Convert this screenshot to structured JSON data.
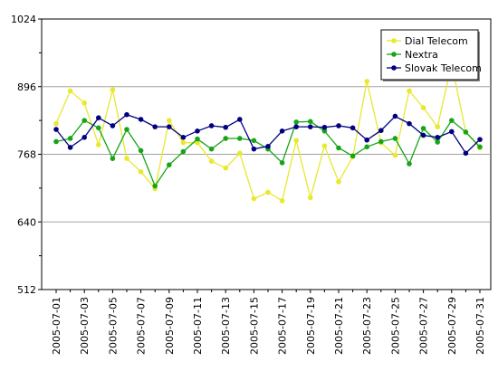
{
  "chart_data": {
    "type": "line",
    "title": "",
    "xlabel": "",
    "ylabel": "",
    "ylim": [
      512,
      1024
    ],
    "y_ticks": [
      512,
      640,
      768,
      896,
      1024
    ],
    "y_tick_labels": [
      "512",
      "640",
      "768",
      "896",
      "1024"
    ],
    "x_tick_every": 2,
    "grid": "horizontal",
    "legend_position": "top-right",
    "x": [
      "2005-07-01",
      "2005-07-02",
      "2005-07-03",
      "2005-07-04",
      "2005-07-05",
      "2005-07-06",
      "2005-07-07",
      "2005-07-08",
      "2005-07-09",
      "2005-07-10",
      "2005-07-11",
      "2005-07-12",
      "2005-07-13",
      "2005-07-14",
      "2005-07-15",
      "2005-07-16",
      "2005-07-17",
      "2005-07-18",
      "2005-07-19",
      "2005-07-20",
      "2005-07-21",
      "2005-07-22",
      "2005-07-23",
      "2005-07-24",
      "2005-07-25",
      "2005-07-26",
      "2005-07-27",
      "2005-07-28",
      "2005-07-29",
      "2005-07-30",
      "2005-07-31"
    ],
    "series": [
      {
        "name": "Dial Telecom",
        "color": "#e8e830",
        "values": [
          826,
          888,
          865,
          786,
          890,
          760,
          735,
          703,
          832,
          790,
          790,
          755,
          742,
          770,
          684,
          696,
          680,
          794,
          686,
          784,
          716,
          763,
          906,
          790,
          766,
          888,
          856,
          820,
          940,
          810,
          780
        ]
      },
      {
        "name": "Nextra",
        "color": "#17a517",
        "values": [
          792,
          798,
          832,
          818,
          760,
          815,
          775,
          708,
          748,
          773,
          797,
          778,
          798,
          798,
          794,
          778,
          752,
          829,
          830,
          812,
          780,
          765,
          782,
          792,
          798,
          750,
          817,
          791,
          832,
          810,
          782
        ]
      },
      {
        "name": "Slovak Telecom",
        "color": "#000080",
        "values": [
          815,
          781,
          800,
          837,
          822,
          843,
          834,
          820,
          820,
          800,
          812,
          822,
          819,
          834,
          778,
          783,
          812,
          820,
          820,
          819,
          822,
          818,
          795,
          813,
          840,
          826,
          804,
          800,
          811,
          770,
          796
        ]
      }
    ]
  }
}
